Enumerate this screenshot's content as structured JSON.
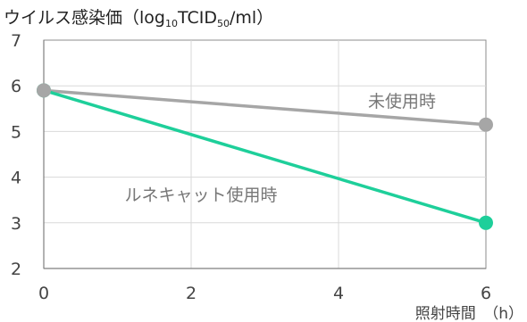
{
  "chart_data": {
    "type": "line",
    "title": "",
    "ylabel_parts": [
      "ウイルス感染価（log",
      "10",
      "TCID",
      "50",
      "/ml）"
    ],
    "xlabel": "照射時間　（h）",
    "x": [
      0,
      6
    ],
    "xticks": [
      "0",
      "2",
      "4",
      "6"
    ],
    "yticks": [
      "2",
      "3",
      "4",
      "5",
      "6",
      "7"
    ],
    "xlim": [
      0,
      6
    ],
    "ylim": [
      2,
      7
    ],
    "grid": true,
    "series": [
      {
        "name": "未使用時",
        "values": [
          5.9,
          5.15
        ],
        "color": "#a6a6a6"
      },
      {
        "name": "ルネキャット使用時",
        "values": [
          5.9,
          3.0
        ],
        "color": "#1ecf9a"
      }
    ]
  }
}
